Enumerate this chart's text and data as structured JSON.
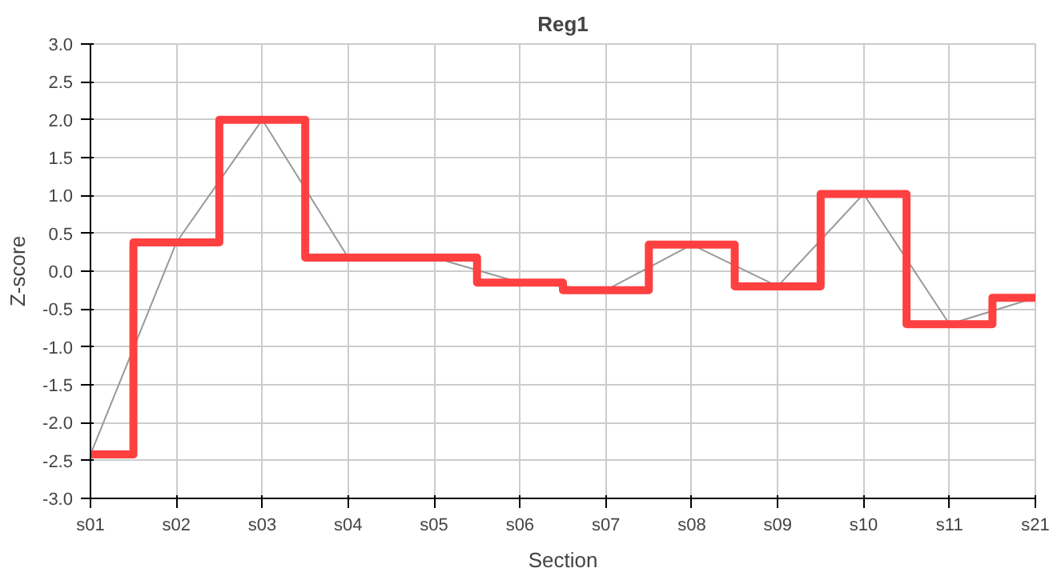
{
  "chart_data": {
    "type": "step",
    "title": "Reg1",
    "xlabel": "Section",
    "ylabel": "Z-score",
    "categories": [
      "s01",
      "s02",
      "s03",
      "s04",
      "s05",
      "s06",
      "s07",
      "s08",
      "s09",
      "s10",
      "s11",
      "s21"
    ],
    "series": [
      {
        "type": "line",
        "color": "#999999",
        "values": [
          -2.42,
          0.38,
          2.0,
          0.18,
          0.18,
          -0.15,
          -0.25,
          0.35,
          -0.2,
          1.02,
          -0.7,
          -0.35
        ]
      },
      {
        "color": "#ff4040",
        "values": [
          -2.42,
          0.38,
          2.0,
          0.18,
          0.18,
          -0.15,
          -0.25,
          0.35,
          -0.2,
          1.02,
          -0.7,
          -0.35
        ]
      }
    ],
    "ylim": [
      -3,
      3
    ],
    "yticks": [
      {
        "value": -3,
        "label": "-3.0"
      },
      {
        "value": -2.5,
        "label": "-2.5"
      },
      {
        "value": -2,
        "label": "-2.0"
      },
      {
        "value": -1.5,
        "label": "-1.5"
      },
      {
        "value": -1,
        "label": "-1.0"
      },
      {
        "value": -0.5,
        "label": "-0.5"
      },
      {
        "value": 0,
        "label": "0.0"
      },
      {
        "value": 0.5,
        "label": "0.5"
      },
      {
        "value": 1,
        "label": "1.0"
      },
      {
        "value": 1.5,
        "label": "1.5"
      },
      {
        "value": 2,
        "label": "2.0"
      },
      {
        "value": 2.5,
        "label": "2.5"
      },
      {
        "value": 3,
        "label": "3.0"
      }
    ],
    "grid": true
  }
}
